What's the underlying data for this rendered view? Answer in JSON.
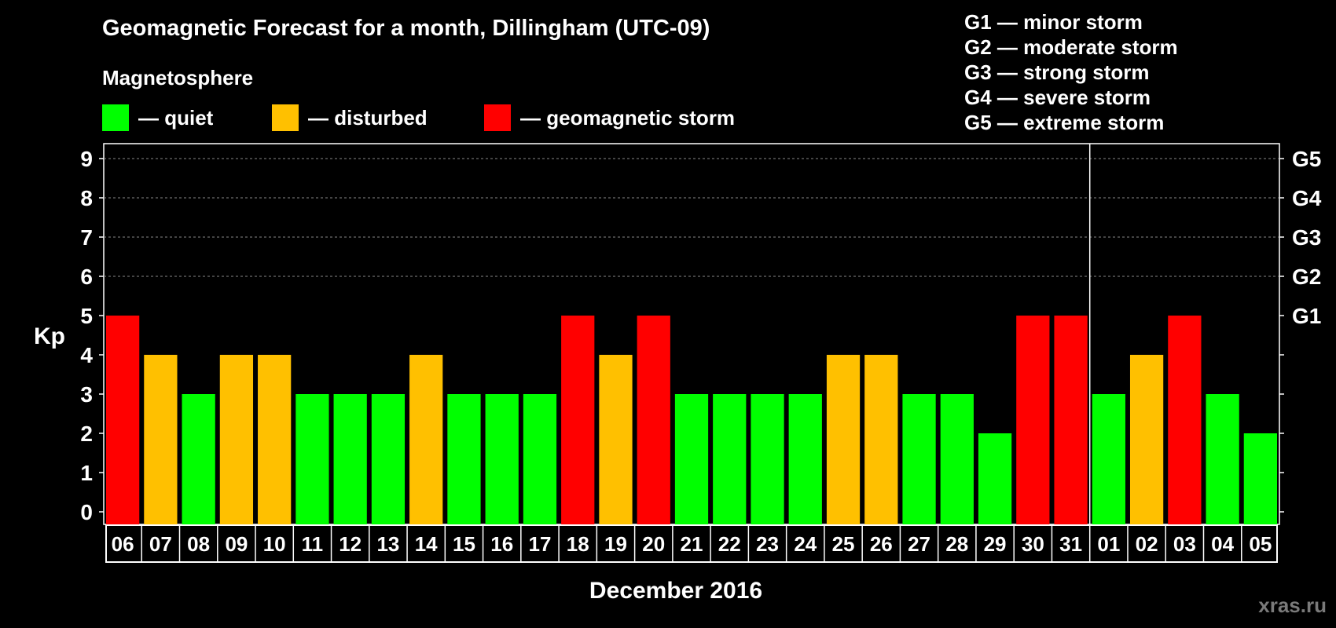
{
  "chart_data": {
    "type": "bar",
    "title": "Geomagnetic Forecast for a month, Dillingham (UTC-09)",
    "ylabel": "Kp",
    "xlabel": "December 2016",
    "ylim": [
      0,
      9
    ],
    "yticks": [
      "0",
      "1",
      "2",
      "3",
      "4",
      "5",
      "6",
      "7",
      "8",
      "9"
    ],
    "g_ticks": [
      {
        "kp": 5,
        "label": "G1"
      },
      {
        "kp": 6,
        "label": "G2"
      },
      {
        "kp": 7,
        "label": "G3"
      },
      {
        "kp": 8,
        "label": "G4"
      },
      {
        "kp": 9,
        "label": "G5"
      }
    ],
    "categories": [
      "06",
      "07",
      "08",
      "09",
      "10",
      "11",
      "12",
      "13",
      "14",
      "15",
      "16",
      "17",
      "18",
      "19",
      "20",
      "21",
      "22",
      "23",
      "24",
      "25",
      "26",
      "27",
      "28",
      "29",
      "30",
      "31",
      "01",
      "02",
      "03",
      "04",
      "05"
    ],
    "values": [
      5,
      4,
      3,
      4,
      4,
      3,
      3,
      3,
      4,
      3,
      3,
      3,
      5,
      4,
      5,
      3,
      3,
      3,
      3,
      4,
      4,
      3,
      3,
      2,
      5,
      5,
      3,
      4,
      5,
      3,
      2
    ],
    "month_break_after": "31",
    "grid": "dashed horizontal at 6-9"
  },
  "legend": {
    "heading": "Magnetosphere",
    "items": [
      {
        "label": "— quiet",
        "color": "#00ff00"
      },
      {
        "label": "— disturbed",
        "color": "#ffc000"
      },
      {
        "label": "— geomagnetic storm",
        "color": "#ff0000"
      }
    ]
  },
  "storm_levels": [
    "G1 — minor storm",
    "G2 — moderate storm",
    "G3 — strong storm",
    "G4 — severe storm",
    "G5 — extreme storm"
  ],
  "watermark": "xras.ru"
}
